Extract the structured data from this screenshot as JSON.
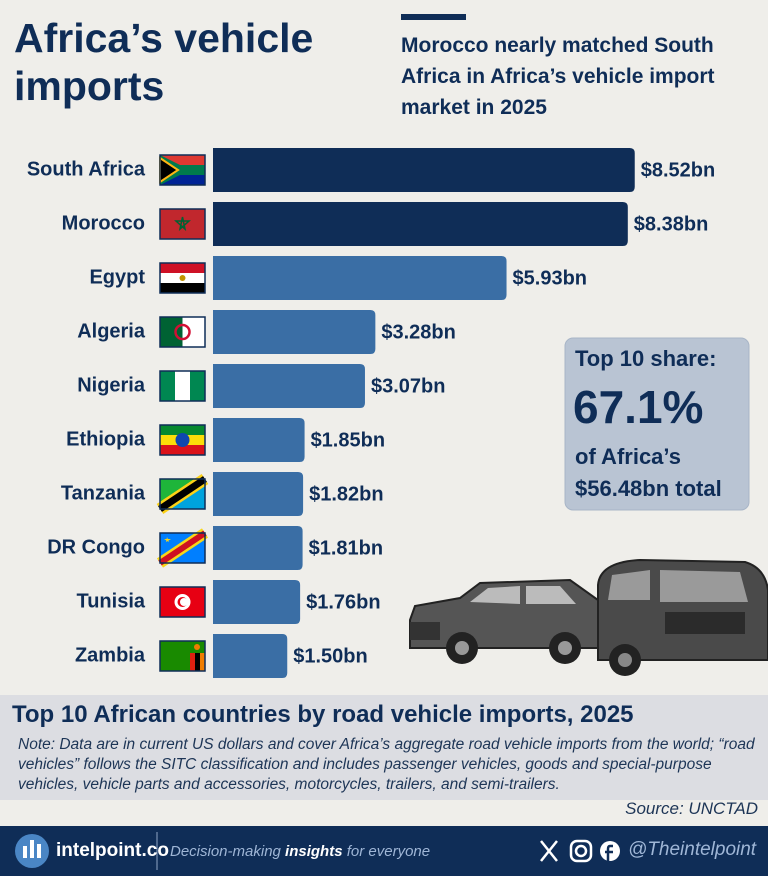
{
  "chart_data": {
    "type": "hbar",
    "title": "Africa’s vehicle imports",
    "subtitle": "Morocco nearly matched South Africa in Africa’s vehicle import market in 2025",
    "categories": [
      "South Africa",
      "Morocco",
      "Egypt",
      "Algeria",
      "Nigeria",
      "Ethiopia",
      "Tanzania",
      "DR Congo",
      "Tunisia",
      "Zambia"
    ],
    "values": [
      8.52,
      8.38,
      5.93,
      3.28,
      3.07,
      1.85,
      1.82,
      1.81,
      1.76,
      1.5
    ],
    "value_labels": [
      "$8.52bn",
      "$8.38bn",
      "$5.93bn",
      "$3.28bn",
      "$3.07bn",
      "$1.85bn",
      "$1.82bn",
      "$1.81bn",
      "$1.76bn",
      "$1.50bn"
    ],
    "colors": [
      "#0f2d57",
      "#0f2d57",
      "#3a6ea5",
      "#3a6ea5",
      "#3a6ea5",
      "#3a6ea5",
      "#3a6ea5",
      "#3a6ea5",
      "#3a6ea5",
      "#3a6ea5"
    ],
    "xlim": [
      0,
      10
    ],
    "callout": {
      "line1": "Top 10 share:",
      "big": "67.1%",
      "line2": "of Africa’s",
      "line3": "$56.48bn total"
    },
    "chart_title": "Top 10 African countries by road vehicle imports, 2025",
    "note": "Note: Data are in current US dollars and cover Africa’s aggregate road vehicle imports from the world; “road vehicles” follows the SITC classification and includes passenger vehicles, goods and special-purpose vehicles, vehicle parts and accessories, motorcycles, trailers, and semi-trailers.",
    "source": "Source: UNCTAD"
  },
  "footer": {
    "brand": "intelpoint.co",
    "tagline": {
      "before": "Decision-making",
      "emphasis": "insights",
      "after": "for everyone"
    },
    "handle": "@Theintelpoint"
  }
}
